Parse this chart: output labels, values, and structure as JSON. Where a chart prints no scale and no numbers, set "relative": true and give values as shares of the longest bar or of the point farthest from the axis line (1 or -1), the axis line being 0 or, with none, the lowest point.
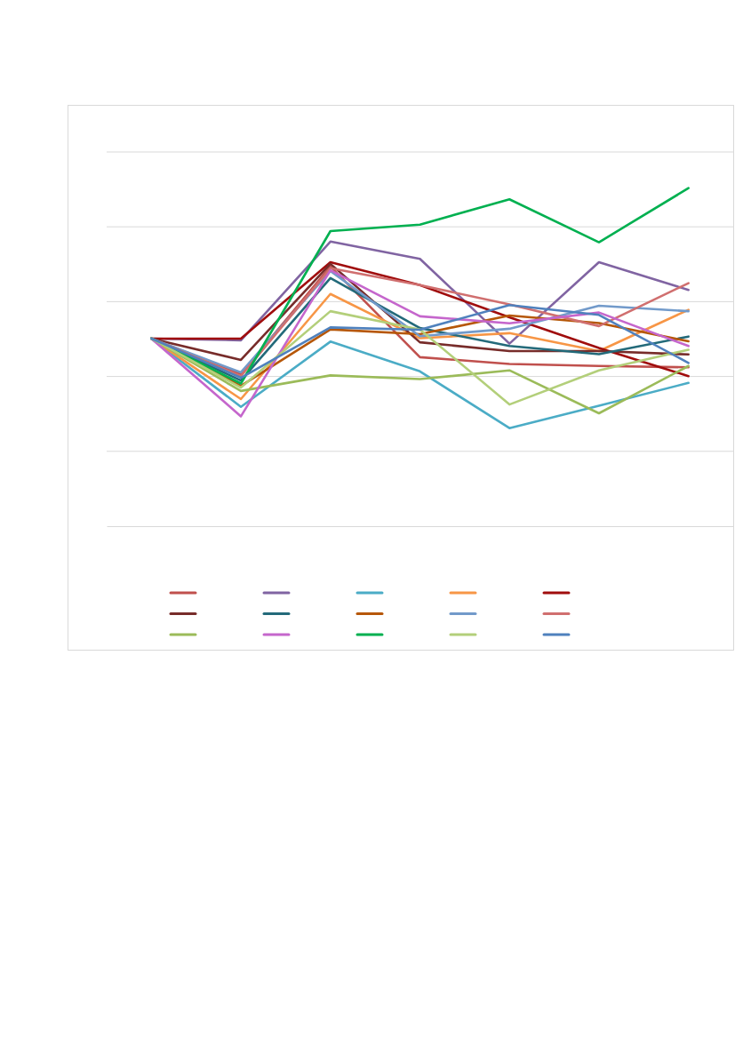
{
  "chart_data": {
    "type": "line",
    "relative": true,
    "grid": true,
    "categories": [
      null,
      null,
      null,
      null,
      null,
      null,
      null
    ],
    "series": [
      {
        "color": "#c0504d",
        "values": [
          0.555,
          0.45,
          0.768,
          0.5,
          0.48,
          0.474,
          0.47
        ]
      },
      {
        "color": "#8064a2",
        "values": [
          0.555,
          0.55,
          0.842,
          0.791,
          0.54,
          0.781,
          0.699
        ]
      },
      {
        "color": "#4bacc6",
        "values": [
          0.555,
          0.353,
          0.546,
          0.458,
          0.29,
          0.356,
          0.424
        ]
      },
      {
        "color": "#f79646",
        "values": [
          0.555,
          0.376,
          0.687,
          0.556,
          0.571,
          0.518,
          0.64
        ]
      },
      {
        "color": "#a00d0d",
        "values": [
          0.555,
          0.555,
          0.781,
          0.713,
          0.618,
          0.527,
          0.444
        ]
      },
      {
        "color": "#772c2a",
        "values": [
          0.555,
          0.492,
          0.776,
          0.544,
          0.518,
          0.518,
          0.508
        ]
      },
      {
        "color": "#236a7a",
        "values": [
          0.555,
          0.431,
          0.734,
          0.586,
          0.533,
          0.509,
          0.561
        ]
      },
      {
        "color": "#b65708",
        "values": [
          0.555,
          0.415,
          0.582,
          0.568,
          0.623,
          0.601,
          0.547
        ]
      },
      {
        "color": "#729aca",
        "values": [
          0.555,
          0.455,
          0.755,
          0.562,
          0.584,
          0.652,
          0.636
        ]
      },
      {
        "color": "#d06f6f",
        "values": [
          0.555,
          0.444,
          0.763,
          0.713,
          0.656,
          0.592,
          0.719
        ]
      },
      {
        "color": "#9bbb59",
        "values": [
          0.555,
          0.4,
          0.446,
          0.435,
          0.461,
          0.334,
          0.474
        ]
      },
      {
        "color": "#c566cc",
        "values": [
          0.555,
          0.325,
          0.757,
          0.621,
          0.6,
          0.632,
          0.533
        ]
      },
      {
        "color": "#00b050",
        "values": [
          0.555,
          0.422,
          0.873,
          0.892,
          0.967,
          0.84,
          1
        ]
      },
      {
        "color": "#b3cf7a",
        "values": [
          0.555,
          0.41,
          0.636,
          0.582,
          0.36,
          0.461,
          0.522
        ]
      },
      {
        "color": "#4f81bd",
        "values": [
          0.555,
          0.439,
          0.588,
          0.581,
          0.654,
          0.625,
          0.483
        ]
      }
    ]
  }
}
